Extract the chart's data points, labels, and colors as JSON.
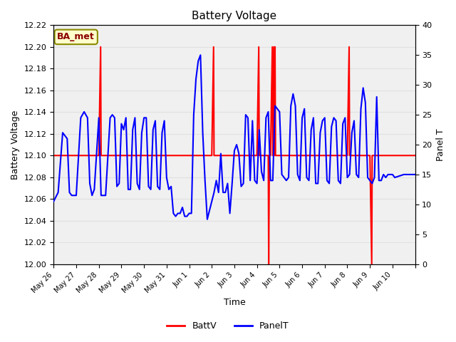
{
  "title": "Battery Voltage",
  "xlabel": "Time",
  "ylabel_left": "Battery Voltage",
  "ylabel_right": "Panel T",
  "annotation_text": "BA_met",
  "annotation_color": "#8B0000",
  "annotation_bg": "#FFFFCC",
  "annotation_border": "#8B8B00",
  "ylim_left": [
    12.0,
    12.22
  ],
  "ylim_right": [
    0,
    40
  ],
  "xtick_positions": [
    0,
    1,
    2,
    3,
    4,
    5,
    6,
    7,
    8,
    9,
    10,
    11,
    12,
    13,
    14,
    15,
    16
  ],
  "xtick_labels": [
    "May 26",
    "May 27",
    "May 28",
    "May 29",
    "May 30",
    "May 31",
    "Jun 1",
    "Jun 2",
    "Jun 3",
    "Jun 4",
    "Jun 5",
    "Jun 6",
    "Jun 7",
    "Jun 8",
    "Jun 9",
    "Jun 10",
    ""
  ],
  "yticks_left": [
    12.0,
    12.02,
    12.04,
    12.06,
    12.08,
    12.1,
    12.12,
    12.14,
    12.16,
    12.18,
    12.2,
    12.22
  ],
  "yticks_right": [
    0,
    5,
    10,
    15,
    20,
    25,
    30,
    35,
    40
  ],
  "grid_color": "#e0e0e0",
  "bg_color": "#f0f0f0",
  "batt_color": "red",
  "panel_color": "blue",
  "legend_labels": [
    "BattV",
    "PanelT"
  ],
  "batt_v_data": [
    [
      0,
      12.1
    ],
    [
      0.5,
      12.1
    ],
    [
      1.0,
      12.1
    ],
    [
      1.5,
      12.1
    ],
    [
      2.0,
      12.1
    ],
    [
      2.08,
      12.2
    ],
    [
      2.1,
      12.1
    ],
    [
      2.5,
      12.1
    ],
    [
      3.0,
      12.1
    ],
    [
      3.5,
      12.1
    ],
    [
      4.0,
      12.1
    ],
    [
      4.5,
      12.1
    ],
    [
      5.0,
      12.1
    ],
    [
      5.5,
      12.1
    ],
    [
      6.0,
      12.1
    ],
    [
      6.5,
      12.1
    ],
    [
      7.0,
      12.1
    ],
    [
      7.08,
      12.2
    ],
    [
      7.1,
      12.1
    ],
    [
      7.5,
      12.1
    ],
    [
      8.0,
      12.1
    ],
    [
      8.5,
      12.1
    ],
    [
      9.0,
      12.1
    ],
    [
      9.08,
      12.2
    ],
    [
      9.1,
      12.1
    ],
    [
      9.5,
      12.1
    ],
    [
      9.52,
      12.0
    ],
    [
      9.55,
      12.1
    ],
    [
      9.6,
      12.1
    ],
    [
      9.68,
      12.2
    ],
    [
      9.7,
      12.1
    ],
    [
      9.75,
      12.2
    ],
    [
      9.77,
      12.1
    ],
    [
      9.8,
      12.2
    ],
    [
      9.82,
      12.1
    ],
    [
      10.0,
      12.1
    ],
    [
      10.5,
      12.1
    ],
    [
      11.0,
      12.1
    ],
    [
      11.5,
      12.1
    ],
    [
      12.0,
      12.1
    ],
    [
      12.5,
      12.1
    ],
    [
      13.0,
      12.1
    ],
    [
      13.08,
      12.2
    ],
    [
      13.1,
      12.1
    ],
    [
      13.5,
      12.1
    ],
    [
      14.0,
      12.1
    ],
    [
      14.08,
      12.0
    ],
    [
      14.1,
      12.1
    ],
    [
      14.5,
      12.1
    ],
    [
      15.0,
      12.1
    ],
    [
      15.5,
      12.1
    ],
    [
      16.0,
      12.1
    ]
  ],
  "panel_t_data": [
    [
      0,
      10.5
    ],
    [
      0.2,
      12.0
    ],
    [
      0.4,
      22.0
    ],
    [
      0.6,
      21.0
    ],
    [
      0.7,
      12.0
    ],
    [
      0.8,
      11.5
    ],
    [
      1.0,
      11.5
    ],
    [
      1.2,
      24.5
    ],
    [
      1.35,
      25.5
    ],
    [
      1.5,
      24.5
    ],
    [
      1.6,
      13.5
    ],
    [
      1.7,
      11.5
    ],
    [
      1.8,
      12.5
    ],
    [
      2.0,
      24.5
    ],
    [
      2.1,
      11.5
    ],
    [
      2.2,
      11.5
    ],
    [
      2.3,
      11.5
    ],
    [
      2.5,
      24.5
    ],
    [
      2.6,
      25.0
    ],
    [
      2.7,
      24.5
    ],
    [
      2.8,
      13.0
    ],
    [
      2.9,
      13.5
    ],
    [
      3.0,
      23.5
    ],
    [
      3.1,
      22.5
    ],
    [
      3.2,
      24.5
    ],
    [
      3.3,
      12.5
    ],
    [
      3.4,
      12.5
    ],
    [
      3.5,
      22.5
    ],
    [
      3.6,
      24.5
    ],
    [
      3.7,
      13.5
    ],
    [
      3.8,
      12.5
    ],
    [
      3.9,
      22.0
    ],
    [
      4.0,
      24.5
    ],
    [
      4.1,
      24.5
    ],
    [
      4.2,
      13.0
    ],
    [
      4.3,
      12.5
    ],
    [
      4.4,
      22.5
    ],
    [
      4.5,
      24.0
    ],
    [
      4.6,
      13.0
    ],
    [
      4.7,
      12.5
    ],
    [
      4.8,
      22.0
    ],
    [
      4.9,
      24.0
    ],
    [
      5.0,
      14.5
    ],
    [
      5.1,
      12.5
    ],
    [
      5.2,
      13.0
    ],
    [
      5.3,
      8.5
    ],
    [
      5.4,
      8.0
    ],
    [
      5.5,
      8.5
    ],
    [
      5.6,
      8.5
    ],
    [
      5.7,
      9.5
    ],
    [
      5.8,
      8.0
    ],
    [
      5.9,
      8.0
    ],
    [
      6.0,
      8.5
    ],
    [
      6.1,
      8.5
    ],
    [
      6.2,
      25.0
    ],
    [
      6.3,
      31.0
    ],
    [
      6.4,
      34.0
    ],
    [
      6.5,
      35.0
    ],
    [
      6.6,
      22.0
    ],
    [
      6.7,
      14.0
    ],
    [
      6.8,
      7.5
    ],
    [
      7.0,
      10.5
    ],
    [
      7.1,
      12.0
    ],
    [
      7.2,
      14.0
    ],
    [
      7.3,
      12.0
    ],
    [
      7.4,
      18.5
    ],
    [
      7.5,
      12.0
    ],
    [
      7.6,
      12.0
    ],
    [
      7.7,
      13.5
    ],
    [
      7.8,
      8.5
    ],
    [
      7.9,
      13.5
    ],
    [
      8.0,
      19.0
    ],
    [
      8.1,
      20.0
    ],
    [
      8.2,
      18.5
    ],
    [
      8.3,
      13.0
    ],
    [
      8.4,
      13.5
    ],
    [
      8.5,
      25.0
    ],
    [
      8.6,
      24.5
    ],
    [
      8.7,
      14.0
    ],
    [
      8.8,
      24.0
    ],
    [
      8.9,
      14.0
    ],
    [
      9.0,
      13.5
    ],
    [
      9.1,
      22.5
    ],
    [
      9.2,
      15.5
    ],
    [
      9.3,
      14.0
    ],
    [
      9.4,
      24.5
    ],
    [
      9.5,
      25.5
    ],
    [
      9.6,
      14.0
    ],
    [
      9.7,
      14.0
    ],
    [
      9.8,
      26.5
    ],
    [
      9.9,
      26.0
    ],
    [
      10.0,
      25.5
    ],
    [
      10.1,
      15.0
    ],
    [
      10.2,
      14.5
    ],
    [
      10.3,
      14.0
    ],
    [
      10.4,
      14.5
    ],
    [
      10.5,
      26.5
    ],
    [
      10.6,
      28.5
    ],
    [
      10.7,
      26.5
    ],
    [
      10.8,
      15.0
    ],
    [
      10.9,
      14.0
    ],
    [
      11.0,
      24.5
    ],
    [
      11.1,
      26.0
    ],
    [
      11.2,
      14.5
    ],
    [
      11.3,
      14.0
    ],
    [
      11.4,
      22.5
    ],
    [
      11.5,
      24.5
    ],
    [
      11.6,
      13.5
    ],
    [
      11.7,
      13.5
    ],
    [
      11.8,
      22.0
    ],
    [
      11.9,
      24.0
    ],
    [
      12.0,
      24.5
    ],
    [
      12.1,
      14.0
    ],
    [
      12.2,
      13.5
    ],
    [
      12.3,
      23.0
    ],
    [
      12.4,
      24.5
    ],
    [
      12.5,
      24.0
    ],
    [
      12.6,
      14.0
    ],
    [
      12.7,
      13.5
    ],
    [
      12.8,
      23.5
    ],
    [
      12.9,
      24.5
    ],
    [
      13.0,
      14.5
    ],
    [
      13.1,
      15.0
    ],
    [
      13.2,
      22.0
    ],
    [
      13.3,
      24.0
    ],
    [
      13.4,
      15.0
    ],
    [
      13.5,
      14.5
    ],
    [
      13.6,
      26.0
    ],
    [
      13.7,
      29.5
    ],
    [
      13.8,
      27.0
    ],
    [
      13.9,
      14.5
    ],
    [
      14.0,
      14.0
    ],
    [
      14.1,
      13.5
    ],
    [
      14.2,
      14.5
    ],
    [
      14.3,
      28.0
    ],
    [
      14.4,
      14.0
    ],
    [
      14.5,
      14.0
    ],
    [
      14.6,
      15.0
    ],
    [
      14.7,
      14.5
    ],
    [
      14.8,
      15.0
    ],
    [
      14.9,
      15.0
    ],
    [
      15.0,
      15.0
    ],
    [
      15.1,
      14.5
    ],
    [
      15.5,
      15.0
    ],
    [
      15.8,
      15.0
    ],
    [
      16.0,
      15.0
    ]
  ]
}
